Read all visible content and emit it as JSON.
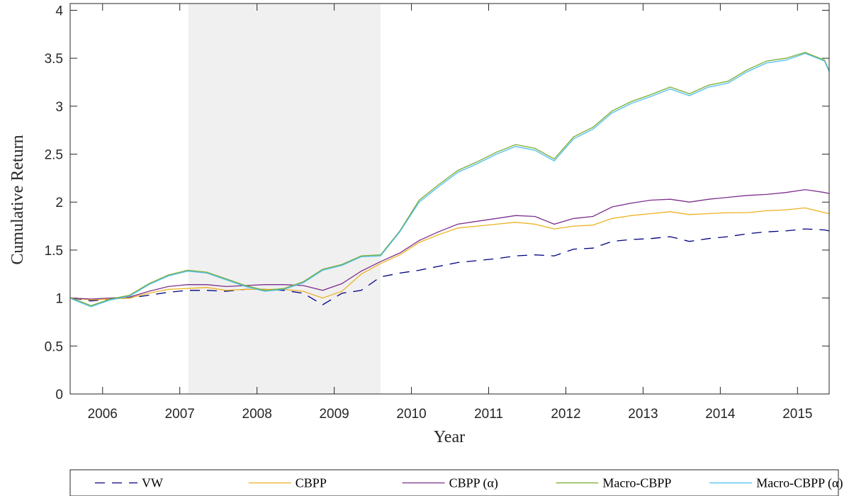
{
  "chart_data": {
    "type": "line",
    "x_label": "Year",
    "y_label": "Cumulative Return",
    "xlim": [
      2005.58,
      2015.41
    ],
    "xticks": [
      2006,
      2007,
      2008,
      2009,
      2010,
      2011,
      2012,
      2013,
      2014,
      2015
    ],
    "ylim": [
      0,
      4.07
    ],
    "yticks": [
      0,
      0.5,
      1,
      1.5,
      2,
      2.5,
      3,
      3.5,
      4
    ],
    "shade": [
      2007.11,
      2009.6
    ],
    "shade_color": "#f0f0f0",
    "legend": "bottom",
    "x": [
      2005.6,
      2005.85,
      2006.1,
      2006.35,
      2006.6,
      2006.85,
      2007.1,
      2007.35,
      2007.6,
      2007.85,
      2008.1,
      2008.35,
      2008.6,
      2008.85,
      2009.1,
      2009.35,
      2009.6,
      2009.85,
      2010.1,
      2010.35,
      2010.6,
      2010.85,
      2011.1,
      2011.35,
      2011.6,
      2011.85,
      2012.1,
      2012.35,
      2012.6,
      2012.85,
      2013.1,
      2013.35,
      2013.6,
      2013.85,
      2014.1,
      2014.35,
      2014.6,
      2014.85,
      2015.1,
      2015.35,
      2015.41
    ],
    "series": [
      {
        "name": "VW",
        "color": "#000080",
        "dash": "14 10",
        "values": [
          1.0,
          0.97,
          0.99,
          1.0,
          1.03,
          1.06,
          1.08,
          1.08,
          1.07,
          1.09,
          1.09,
          1.08,
          1.05,
          0.93,
          1.05,
          1.08,
          1.22,
          1.26,
          1.29,
          1.33,
          1.37,
          1.39,
          1.41,
          1.44,
          1.45,
          1.44,
          1.51,
          1.52,
          1.59,
          1.61,
          1.62,
          1.64,
          1.59,
          1.62,
          1.64,
          1.67,
          1.69,
          1.7,
          1.72,
          1.71,
          1.7
        ]
      },
      {
        "name": "CBPP",
        "color": "#EDB120",
        "values": [
          1.0,
          0.98,
          0.99,
          1.0,
          1.05,
          1.09,
          1.1,
          1.11,
          1.08,
          1.09,
          1.09,
          1.09,
          1.07,
          1.0,
          1.07,
          1.25,
          1.36,
          1.45,
          1.58,
          1.66,
          1.73,
          1.75,
          1.77,
          1.79,
          1.77,
          1.72,
          1.75,
          1.76,
          1.83,
          1.86,
          1.88,
          1.9,
          1.87,
          1.88,
          1.89,
          1.89,
          1.91,
          1.92,
          1.94,
          1.89,
          1.88
        ]
      },
      {
        "name": "CBPP (α)",
        "color": "#7E2F8E",
        "values": [
          1.0,
          0.99,
          1.0,
          1.01,
          1.07,
          1.12,
          1.14,
          1.14,
          1.12,
          1.13,
          1.14,
          1.14,
          1.13,
          1.08,
          1.15,
          1.28,
          1.38,
          1.47,
          1.6,
          1.69,
          1.77,
          1.8,
          1.83,
          1.86,
          1.85,
          1.77,
          1.83,
          1.85,
          1.95,
          1.99,
          2.02,
          2.03,
          2.0,
          2.03,
          2.05,
          2.07,
          2.08,
          2.1,
          2.13,
          2.1,
          2.09
        ]
      },
      {
        "name": "Macro-CBPP",
        "color": "#77AC30",
        "values": [
          1.0,
          0.92,
          0.99,
          1.03,
          1.15,
          1.24,
          1.29,
          1.27,
          1.2,
          1.13,
          1.08,
          1.1,
          1.17,
          1.3,
          1.35,
          1.44,
          1.45,
          1.7,
          2.02,
          2.18,
          2.33,
          2.42,
          2.52,
          2.6,
          2.56,
          2.45,
          2.68,
          2.78,
          2.95,
          3.05,
          3.12,
          3.2,
          3.13,
          3.22,
          3.26,
          3.38,
          3.47,
          3.5,
          3.56,
          3.48,
          3.37
        ]
      },
      {
        "name": "Macro-CBPP (α)",
        "color": "#4DBEEE",
        "values": [
          0.99,
          0.91,
          0.98,
          1.02,
          1.14,
          1.23,
          1.28,
          1.26,
          1.19,
          1.12,
          1.07,
          1.09,
          1.16,
          1.29,
          1.34,
          1.43,
          1.44,
          1.69,
          2.0,
          2.16,
          2.31,
          2.4,
          2.5,
          2.58,
          2.54,
          2.43,
          2.66,
          2.76,
          2.93,
          3.03,
          3.1,
          3.18,
          3.11,
          3.2,
          3.24,
          3.36,
          3.45,
          3.48,
          3.55,
          3.47,
          3.36
        ]
      }
    ]
  }
}
